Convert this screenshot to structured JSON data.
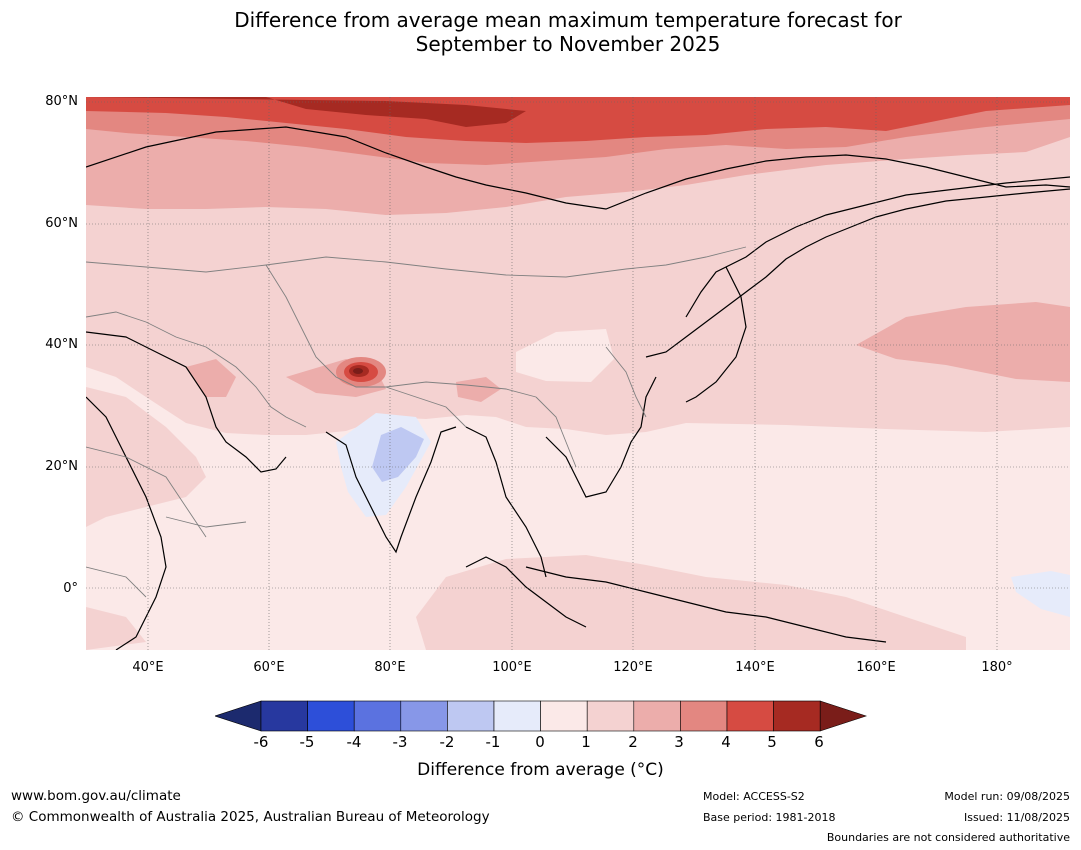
{
  "title": {
    "line1": "Difference from average mean maximum temperature forecast for",
    "line2": "September to November 2025"
  },
  "map": {
    "lat_labels": [
      "80°N",
      "60°N",
      "40°N",
      "20°N",
      "0°"
    ],
    "lon_labels": [
      "40°E",
      "60°E",
      "80°E",
      "100°E",
      "120°E",
      "140°E",
      "160°E",
      "180°"
    ]
  },
  "colorbar": {
    "ticks": [
      "-6",
      "-5",
      "-4",
      "-3",
      "-2",
      "-1",
      "0",
      "1",
      "2",
      "3",
      "4",
      "5",
      "6"
    ],
    "colors": [
      "#27389f",
      "#2d4fd9",
      "#5b72e0",
      "#8797e8",
      "#bec8f2",
      "#e6ebfa",
      "#fbe9e8",
      "#f4d2d1",
      "#ecadab",
      "#e38781",
      "#d64b42",
      "#a62a22"
    ],
    "low_extend_color": "#1c2a6e",
    "high_extend_color": "#7a1d19",
    "label": "Difference from average (°C)"
  },
  "footer": {
    "website": "www.bom.gov.au/climate",
    "copyright": "© Commonwealth of Australia 2025, Australian Bureau of Meteorology",
    "model": "Model: ACCESS-S2",
    "base_period": "Base period: 1981-2018",
    "model_run": "Model run: 09/08/2025",
    "issued": "Issued: 11/08/2025",
    "disclaimer": "Boundaries are not considered authoritative"
  }
}
